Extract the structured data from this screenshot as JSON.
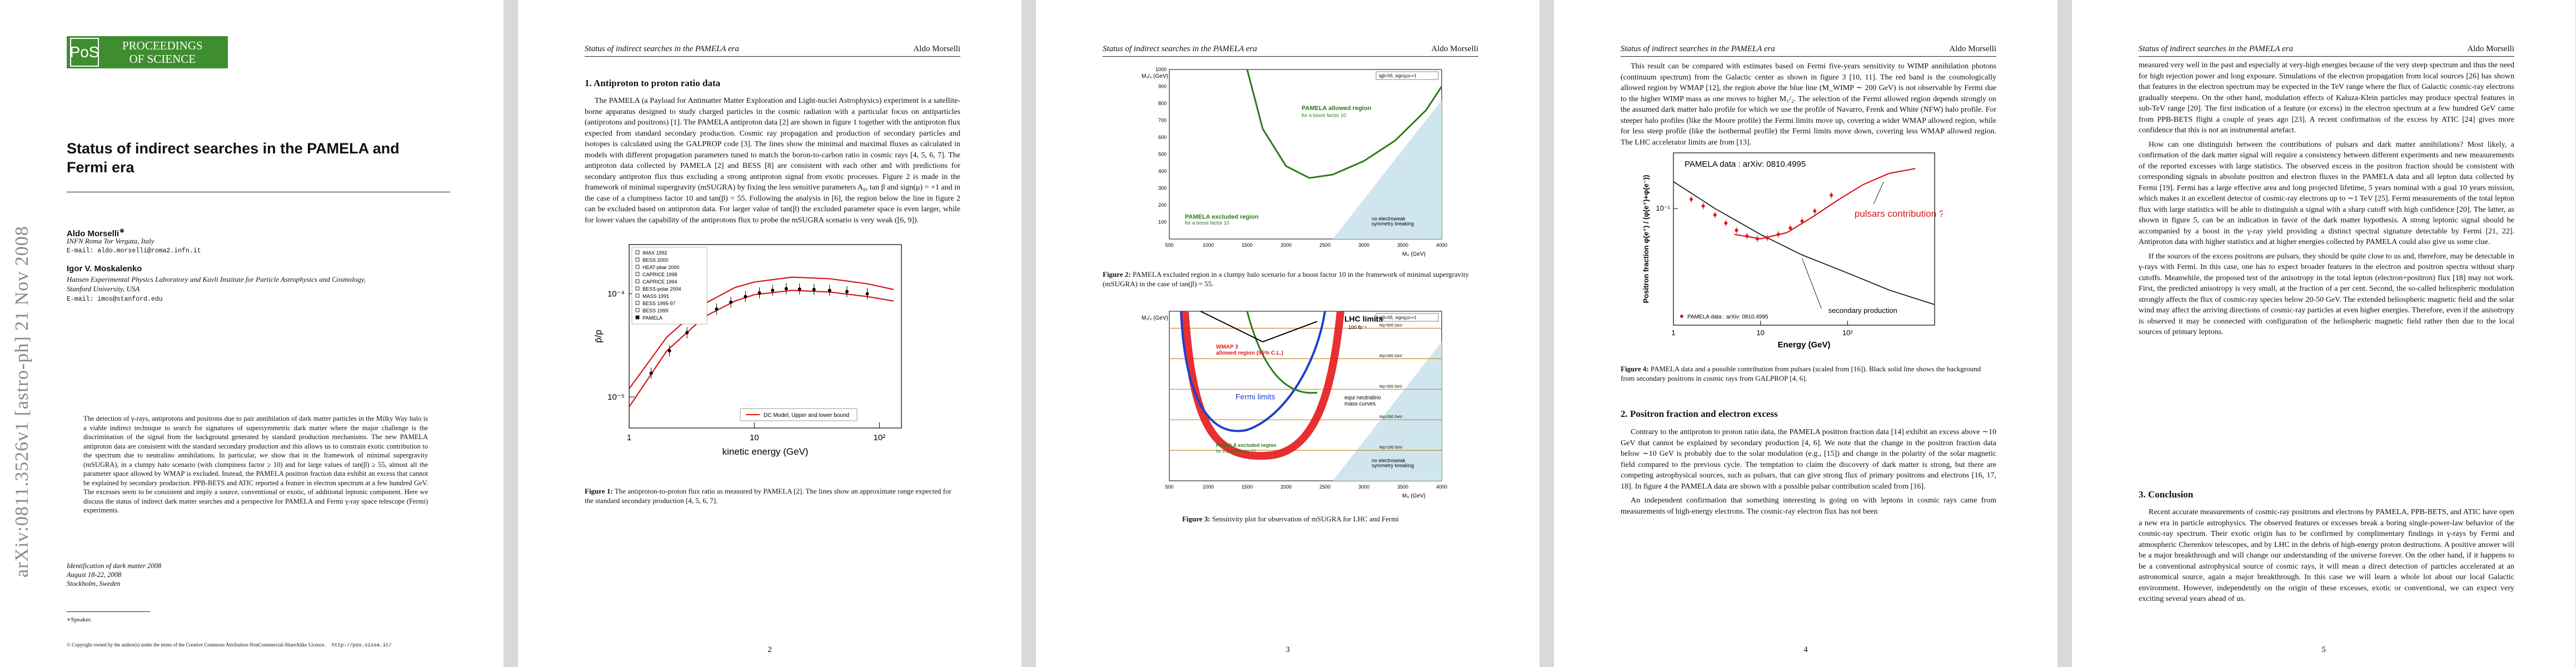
{
  "page1": {
    "arxiv_stamp": "arXiv:0811.3526v1  [astro-ph]  21 Nov 2008",
    "logo": {
      "letters": "PoS",
      "line1": "PROCEEDINGS",
      "line2": "OF SCIENCE"
    },
    "title": "Status of indirect searches in the PAMELA and Fermi era",
    "author1": "Aldo Morselli",
    "author1_sup": "∗",
    "affil1": "INFN Roma Tor Vergata, Italy",
    "email1": "E-mail: aldo.morselli@roma2.infn.it",
    "author2": "Igor V. Moskalenko",
    "affil2": "Hansen Experimental Physics Laboratory and Kavli Institute for Particle Astrophysics and Cosmology, Stanford University, USA",
    "email2": "E-mail: imos@stanford.edu",
    "abstract": "The detection of γ-rays, antiprotons and positrons due to pair annihilation of dark matter particles in the Milky Way halo is a viable indirect technique to search for signatures of supersymmetric dark matter where the major challenge is the discrimination of the signal from the background generated by standard production mechanisms. The new PAMELA antiproton data are consistent with the standard secondary production and this allows us to constrain exotic contribution to the spectrum due to neutralino annihilations. In particular, we show that in the framework of minimal supergravity (mSUGRA), in a clumpy halo scenario (with clumpiness factor ≥ 10) and for large values of tan(β) ≥ 55, almost all the parameter space allowed by WMAP is excluded. Instead, the PAMELA positron fraction data exhibit an excess that cannot be explained by secondary production. PPB-BETS and ATIC reported a feature in electron spectrum at a few hundred GeV. The excesses seem to be consistent and imply a source, conventional or exotic, of additional leptonic component. Here we discuss the status of indirect dark matter searches and a perspective for PAMELA and Fermi γ-ray space telescope (Fermi) experiments.",
    "conf_lines": [
      "Identification of dark matter 2008",
      "August 18-22, 2008",
      "Stockholm, Sweden"
    ],
    "footnote": "∗Speaker.",
    "copyright": "© Copyright owned by the author(s) under the terms of the Creative Commons Attribution-NonCommercial-ShareAlike Licence.",
    "url": "http://pos.sissa.it/"
  },
  "running_head": {
    "left": "Status of indirect searches in the PAMELA era",
    "right": "Aldo Morselli"
  },
  "page2": {
    "section": "1.  Antiproton to proton ratio data",
    "text": [
      "The PAMELA (a Payload for Antimatter Matter Exploration and Light-nuclei Astrophysics) experiment is a satellite-borne apparatus designed to study charged particles in the cosmic radiation with a particular focus on antiparticles (antiprotons and positrons) [1]. The PAMELA antiproton data [2] are shown in figure 1 together with the antiproton flux expected from standard secondary production. Cosmic ray propagation and production of secondary particles and isotopes is calculated using the GALPROP code [3]. The lines show the minimal and maximal fluxes as calculated in models with different propagation parameters tuned to match the boron-to-carbon ratio in cosmic rays [4, 5, 6, 7]. The antiproton data collected by PAMELA [2] and BESS [8] are consistent with each other and with predictions for secondary antiproton flux thus excluding a strong antiproton signal from exotic processes. Figure 2 is made in the framework of minimal supergravity (mSUGRA) by fixing the less sensitive parameters A₀, tan β and sign(μ) = +1 and in the case of a clumpiness factor 10 and tan(β) = 55. Following the analysis in [6], the region below the line in figure 2 can be excluded based on antiproton data. For larger value of tan(β) the excluded parameter space is even larger, while for lower values the capability of the antiprotons flux to probe the mSUGRA scenario is very weak ([6, 9])."
    ],
    "fig_caption_label": "Figure 1:",
    "fig_caption": "The antiproton-to-proton flux ratio as measured by PAMELA [2]. The lines show an approximate range expected for the standard secondary production [4, 5, 6, 7].",
    "page_number": "2"
  },
  "page3": {
    "fig2_caption_label": "Figure 2:",
    "fig2_caption": "PAMELA excluded region in a clumpy halo scenario for a boost factor 10 in the framework of minimal supergravity (mSUGRA) in the case of tan(β) = 55.",
    "fig3_caption_label": "Figure 3:",
    "fig3_caption": "Sensitivity plot for observation of mSUGRA for LHC and Fermi",
    "page_number": "3"
  },
  "page4": {
    "text_top": [
      "This result can be compared with estimates based on Fermi five-years sensitivity to WIMP annihilation photons (continuum spectrum) from the Galactic center as shown in figure 3 [10, 11]. The red band is the cosmologically allowed region by WMAP [12], the region above the blue line (M_WIMP ∼ 200 GeV) is not observable by Fermi due to the higher WIMP mass as one moves to higher M₁/₂. The selection of the Fermi allowed region depends strongly on the assumed dark matter halo profile for which we use the profile of Navarro, Frenk and White (NFW) halo profile. For steeper halo profiles (like the Moore profile) the Fermi limits move up, covering a wider WMAP allowed region, while for less steep profile (like the isothermal profile) the Fermi limits move down, covering less WMAP allowed region. The LHC accelerator limits are from [13]."
    ],
    "fig4_caption_label": "Figure 4:",
    "fig4_caption": "PAMELA data and a possible contribution from pulsars (scaled from [16]). Black solid line shows the background from secondary positrons in cosmic rays from GALPROP [4, 6].",
    "section": "2.  Positron fraction and electron excess",
    "text_bottom": [
      "Contrary to the antiproton to proton ratio data, the PAMELA positron fraction data [14] exhibit an excess above ∼10 GeV that cannot be explained by secondary production [4, 6]. We note that the change in the positron fraction data below ∼10 GeV is probably due to the solar modulation (e.g., [15]) and change in the polarity of the solar magnetic field compared to the previous cycle. The temptation to claim the discovery of dark matter is strong, but there are competing astrophysical sources, such as pulsars, that can give strong flux of primary positrons and electrons [16, 17, 18]. In figure 4 the PAMELA data are shown with a possible pulsar contribution scaled from [16].",
      "An independent confirmation that something interesting is going on with leptons in cosmic rays came from measurements of high-energy electrons. The cosmic-ray electron flux has not been"
    ],
    "page_number": "4"
  },
  "page5": {
    "text_top": [
      "measured very well in the past and especially at very-high energies because of the very steep spectrum and thus the need for high rejection power and long exposure. Simulations of the electron propagation from local sources [26] has shown that features in the electron spectrum may be expected in the TeV range where the flux of Galactic cosmic-ray electrons gradually steepens. On the other hand, modulation effects of Kaluza-Klein particles may produce spectral features in sub-TeV range [20]. The first indication of a feature (or excess) in the electron spectrum at a few hundred GeV came from PPB-BETS flight a couple of years ago [23]. A recent confirmation of the excess by ATIC [24] gives more confidence that this is not an instrumental artefact.",
      "How can one distinguish between the contributions of pulsars and dark matter annihilations? Most likely, a confirmation of the dark matter signal will require a consistency between different experiments and new measurements of the reported excesses with large statistics. The observed excess in the positron fraction should be consistent with corresponding signals in absolute positron and electron fluxes in the PAMELA data and all lepton data collected by Fermi [19]. Fermi has a large effective area and long projected lifetime, 5 years nominal with a goal 10 years mission, which makes it an excellent detector of cosmic-ray electrons up to ∼1 TeV [25]. Fermi measurements of the total lepton flux with large statistics will be able to distinguish a signal with a sharp cutoff with high confidence [20]. The latter, as shown in figure 5, can be an indication in favor of the dark matter hypothesis. A strong leptonic signal should be accompanied by a boost in the γ-ray yield providing a distinct spectral signature detectable by Fermi [21, 22]. Antiproton data with higher statistics and at higher energies collected by PAMELA could also give us some clue.",
      "If the sources of the excess positrons are pulsars, they should be quite close to us and, therefore, may be detectable in γ-rays with Fermi. In this case, one has to expect broader features in the electron and positron spectra without sharp cutoffs. Meanwhile, the proposed test of the anisotropy in the total lepton (electron+positron) flux [18] may not work. First, the predicted anisotropy is very small, at the fraction of a per cent. Second, the so-called heliospheric modulation strongly affects the flux of cosmic-ray species below 20-50 GeV. The extended heliospheric magnetic field and the solar wind may affect the arriving directions of cosmic-ray particles at even higher energies. Therefore, even if the anisotropy is observed it may be connected with configuration of the heliospheric magnetic field rather then due to the local sources of primary leptons."
    ],
    "section": "3.  Conclusion",
    "text_bottom": [
      "Recent accurate measurements of cosmic-ray positrons and electrons by PAMELA, PPB-BETS, and ATIC have open a new era in particle astrophysics. The observed features or excesses break a boring single-power-law behavior of the cosmic-ray spectrum. Their exotic origin has to be confirmed by complimentary findings in γ-rays by Fermi and atmospheric Cherenkov telescopes, and by LHC in the debris of high-energy proton destructions. A positive answer will be a major breakthrough and will change our understanding of the universe forever. On the other hand, if it happens to be a conventional astrophysical source of cosmic rays, it will mean a direct detection of particles accelerated at an astronomical source, again a major breakthrough. In this case we will learn a whole lot about our local Galactic environment. However, independently on the origin of these excesses, exotic or conventional, we can expect very exciting several years ahead of us."
    ],
    "page_number": "5"
  },
  "chart_data": [
    {
      "type": "scatter",
      "figure": "Figure 1",
      "xlabel": "kinetic energy (GeV)",
      "ylabel": "p̄/p",
      "xscale": "log",
      "yscale": "log",
      "xlim": [
        1,
        150
      ],
      "ylim": [
        5e-06,
        0.0003
      ],
      "x_ticks": [
        "1",
        "10",
        "10²"
      ],
      "y_ticks": [
        "10⁻⁵",
        "10⁻⁴"
      ],
      "legend_entries": [
        "IMAX 1992",
        "BESS 2000",
        "HEAT-pbar 2000",
        "CAPRICE 1998",
        "CAPRICE 1994",
        "BESS-polar 2004",
        "MASS 1991",
        "BESS 1995-97",
        "BESS 1999",
        "PAMELA"
      ],
      "legend_lines": [
        "DC Model, Upper and lower bound"
      ],
      "series": [
        {
          "name": "PAMELA",
          "x": [
            1.5,
            2.1,
            2.9,
            3.8,
            5.0,
            6.5,
            8.5,
            11,
            14,
            18,
            23,
            30,
            40,
            55,
            80
          ],
          "y": [
            1.7e-05,
            2.8e-05,
            4.2e-05,
            5.8e-05,
            7.1e-05,
            8.3e-05,
            9.4e-05,
            0.000102,
            0.000108,
            0.000112,
            0.000111,
            0.00011,
            0.000108,
            0.000105,
            0.0001
          ]
        },
        {
          "name": "DC Model, Upper and lower bound",
          "x": [
            1,
            2,
            4,
            7,
            10,
            20,
            40,
            80,
            130
          ],
          "y": [
            1.2e-05,
            3.8e-05,
            8e-05,
            0.000115,
            0.00013,
            0.000145,
            0.00014,
            0.000125,
            0.00011
          ]
        },
        {
          "name": "DC Model lower",
          "x": [
            1,
            2,
            4,
            7,
            10,
            20,
            40,
            80,
            130
          ],
          "y": [
            8e-06,
            2.8e-05,
            6e-05,
            8.5e-05,
            9.8e-05,
            0.000108,
            0.000104,
            9.4e-05,
            8.5e-05
          ]
        }
      ]
    },
    {
      "type": "line",
      "figure": "Figure 2",
      "xlabel": "M₀ (GeV)",
      "ylabel": "M₁/₂ (GeV)",
      "xlim": [
        500,
        4000
      ],
      "ylim": [
        0,
        1000
      ],
      "x_ticks": [
        "500",
        "1000",
        "1500",
        "2000",
        "2500",
        "3000",
        "3500",
        "4000"
      ],
      "y_ticks": [
        "100",
        "200",
        "300",
        "400",
        "500",
        "600",
        "700",
        "800",
        "900",
        "1000"
      ],
      "legend_box": "tgβ=55, sign(μ)=+1",
      "annotations": [
        "PAMELA allowed region for a boost factor 10",
        "PAMELA excluded region for a boost factor 10",
        "no electroweak symmetry breaking"
      ],
      "series": [
        {
          "name": "PAMELA limit",
          "x": [
            1500,
            1700,
            2000,
            2300,
            2600,
            3000,
            3400,
            3800,
            4000
          ],
          "y": [
            1000,
            650,
            430,
            360,
            380,
            460,
            580,
            760,
            900
          ]
        }
      ]
    },
    {
      "type": "line",
      "figure": "Figure 3",
      "xlabel": "M₀ (GeV)",
      "ylabel": "M₁/₂ (GeV)",
      "xlim": [
        500,
        4000
      ],
      "ylim": [
        0,
        1000
      ],
      "x_ticks": [
        "500",
        "1000",
        "1500",
        "2000",
        "2500",
        "3000",
        "3500",
        "4000"
      ],
      "legend_box": "tgβ=55, sign(μ)=+1",
      "annotations": [
        "LHC limits",
        "100 fb⁻¹",
        "WMAP 3 allowed region (95% C.L.)",
        "Fermi limits",
        "PAMELA excluded region for a boost factor 10",
        "equi neutralino mass curves",
        "no electroweak symmetry breaking",
        "Mχ=500 GeV",
        "Mχ=400 GeV",
        "Mχ=300 GeV",
        "Mχ=200 GeV",
        "Mχ=100 GeV"
      ]
    },
    {
      "type": "scatter",
      "figure": "Figure 4",
      "xlabel": "Energy (GeV)",
      "ylabel": "Positron fraction   φ(e⁺) / (φ(e⁺)+φ(e⁻))",
      "xscale": "log",
      "yscale": "log",
      "xlim": [
        1,
        1000
      ],
      "ylim": [
        0.01,
        0.3
      ],
      "x_ticks": [
        "1",
        "10",
        "10²"
      ],
      "y_ticks": [
        "10⁻¹"
      ],
      "header_text": "PAMELA data : arXiv: 0810.4995",
      "legend_entries": [
        "PAMELA data : arXiv: 0810.4995"
      ],
      "annotations": [
        "pulsars contribution ?",
        "secondary production"
      ],
      "series": [
        {
          "name": "PAMELA data : arXiv: 0810.4995",
          "x": [
            1.6,
            2.2,
            3.0,
            4.0,
            5.3,
            7.0,
            9.2,
            12,
            16,
            22,
            30,
            42,
            65
          ],
          "y": [
            0.12,
            0.105,
            0.088,
            0.075,
            0.065,
            0.058,
            0.055,
            0.056,
            0.06,
            0.068,
            0.078,
            0.095,
            0.13
          ]
        },
        {
          "name": "secondary production",
          "x": [
            1,
            3,
            10,
            30,
            100,
            300,
            1000
          ],
          "y": [
            0.17,
            0.1,
            0.06,
            0.04,
            0.028,
            0.02,
            0.015
          ]
        },
        {
          "name": "pulsars contribution ?",
          "x": [
            5,
            10,
            20,
            40,
            80,
            150,
            300,
            600
          ],
          "y": [
            0.06,
            0.055,
            0.062,
            0.085,
            0.12,
            0.16,
            0.2,
            0.22
          ]
        }
      ]
    }
  ]
}
